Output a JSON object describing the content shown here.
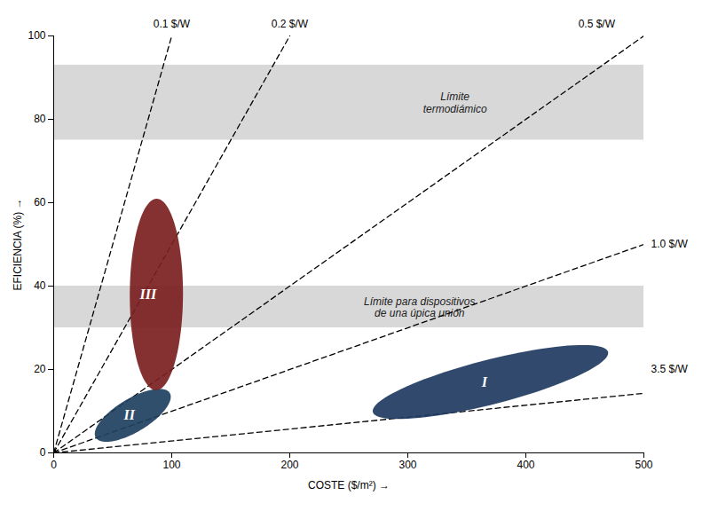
{
  "chart_data": {
    "type": "region",
    "xlabel": "COSTE ($/m²)",
    "ylabel": "EFICIENCIA (%)",
    "xlim": [
      0,
      500
    ],
    "ylim": [
      0,
      100
    ],
    "xticks": [
      0,
      100,
      200,
      300,
      400,
      500
    ],
    "yticks": [
      0,
      20,
      40,
      60,
      80,
      100
    ],
    "bands": [
      {
        "y": [
          75,
          93
        ],
        "label": "Límite\ntermodiámico",
        "label_x": 340,
        "label_y": 84,
        "color": "#b8b8b8"
      },
      {
        "y": [
          30,
          40
        ],
        "label": "Límite para dispositivos\nde una úpica unión",
        "label_x": 310,
        "label_y": 35,
        "color": "#b8b8b8"
      }
    ],
    "series": [
      {
        "name": "0.1 $/W",
        "x": [
          0,
          100
        ],
        "y": [
          0,
          100
        ],
        "label_x": 100,
        "label_y": 100,
        "color": "#000000",
        "line_style": "dashed"
      },
      {
        "name": "0.2 $/W",
        "x": [
          0,
          200
        ],
        "y": [
          0,
          100
        ],
        "label_x": 200,
        "label_y": 100,
        "color": "#000000",
        "line_style": "dashed"
      },
      {
        "name": "0.5 $/W",
        "x": [
          0,
          500
        ],
        "y": [
          0,
          100
        ],
        "label_x": 460,
        "label_y": 100,
        "color": "#000000",
        "line_style": "dashed"
      },
      {
        "name": "1.0 $/W",
        "x": [
          0,
          500
        ],
        "y": [
          0,
          50
        ],
        "label_x": 500,
        "label_y": 50,
        "color": "#000000",
        "line_style": "dashed"
      },
      {
        "name": "3.5 $/W",
        "x": [
          0,
          500
        ],
        "y": [
          0,
          14.285714285714286
        ],
        "label_x": 500,
        "label_y": 20,
        "color": "#000000",
        "line_style": "dashed"
      }
    ],
    "ellipses": [
      {
        "cx": 370,
        "cy": 17,
        "width": 200,
        "height": 11,
        "angle": 4,
        "color": "#1e3a5f",
        "label": "I",
        "label_x": 365,
        "label_y": 17
      },
      {
        "cx": 67,
        "cy": 9,
        "width": 65,
        "height": 9,
        "angle": 8,
        "color": "#1e4060",
        "label": "II",
        "label_x": 64,
        "label_y": 9
      },
      {
        "cx": 87,
        "cy": 38,
        "width": 45,
        "height": 46,
        "angle": -15,
        "color": "#7b2020",
        "label": "III",
        "label_x": 80,
        "label_y": 38
      }
    ],
    "points": [
      {
        "x": 0,
        "y": 0,
        "color": "#000000"
      }
    ]
  }
}
